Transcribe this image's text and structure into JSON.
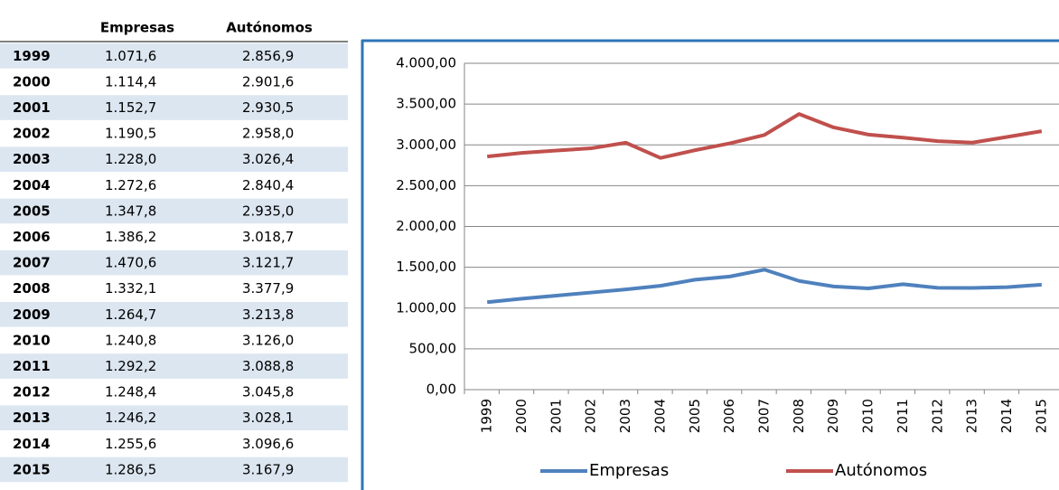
{
  "table": {
    "header": [
      "Empresas",
      "Autónomos"
    ],
    "rows": [
      [
        "1999",
        "1.071,6",
        "2.856,9"
      ],
      [
        "2000",
        "1.114,4",
        "2.901,6"
      ],
      [
        "2001",
        "1.152,7",
        "2.930,5"
      ],
      [
        "2002",
        "1.190,5",
        "2.958,0"
      ],
      [
        "2003",
        "1.228,0",
        "3.026,4"
      ],
      [
        "2004",
        "1.272,6",
        "2.840,4"
      ],
      [
        "2005",
        "1.347,8",
        "2.935,0"
      ],
      [
        "2006",
        "1.386,2",
        "3.018,7"
      ],
      [
        "2007",
        "1.470,6",
        "3.121,7"
      ],
      [
        "2008",
        "1.332,1",
        "3.377,9"
      ],
      [
        "2009",
        "1.264,7",
        "3.213,8"
      ],
      [
        "2010",
        "1.240,8",
        "3.126,0"
      ],
      [
        "2011",
        "1.292,2",
        "3.088,8"
      ],
      [
        "2012",
        "1.248,4",
        "3.045,8"
      ],
      [
        "2013",
        "1.246,2",
        "3.028,1"
      ],
      [
        "2014",
        "1.255,6",
        "3.096,6"
      ],
      [
        "2015",
        "1.286,5",
        "3.167,9"
      ]
    ]
  },
  "chart_data": {
    "type": "line",
    "categories": [
      "1999",
      "2000",
      "2001",
      "2002",
      "2003",
      "2004",
      "2005",
      "2006",
      "2007",
      "2008",
      "2009",
      "2010",
      "2011",
      "2012",
      "2013",
      "2014",
      "2015"
    ],
    "series": [
      {
        "name": "Empresas",
        "color": "#4f81bd",
        "values": [
          1071.6,
          1114.4,
          1152.7,
          1190.5,
          1228.0,
          1272.6,
          1347.8,
          1386.2,
          1470.6,
          1332.1,
          1264.7,
          1240.8,
          1292.2,
          1248.4,
          1246.2,
          1255.6,
          1286.5
        ]
      },
      {
        "name": "Autónomos",
        "color": "#c0504d",
        "values": [
          2856.9,
          2901.6,
          2930.5,
          2958.0,
          3026.4,
          2840.4,
          2935.0,
          3018.7,
          3121.7,
          3377.9,
          3213.8,
          3126.0,
          3088.8,
          3045.8,
          3028.1,
          3096.6,
          3167.9
        ]
      }
    ],
    "ylim": [
      0,
      4000
    ],
    "yticks": [
      {
        "value": 0,
        "label": "0,00"
      },
      {
        "value": 500,
        "label": "500,00"
      },
      {
        "value": 1000,
        "label": "1.000,00"
      },
      {
        "value": 1500,
        "label": "1.500,00"
      },
      {
        "value": 2000,
        "label": "2.000,00"
      },
      {
        "value": 2500,
        "label": "2.500,00"
      },
      {
        "value": 3000,
        "label": "3.000,00"
      },
      {
        "value": 3500,
        "label": "3.500,00"
      },
      {
        "value": 4000,
        "label": "4.000,00"
      }
    ],
    "grid": true,
    "legend": "bottom"
  }
}
